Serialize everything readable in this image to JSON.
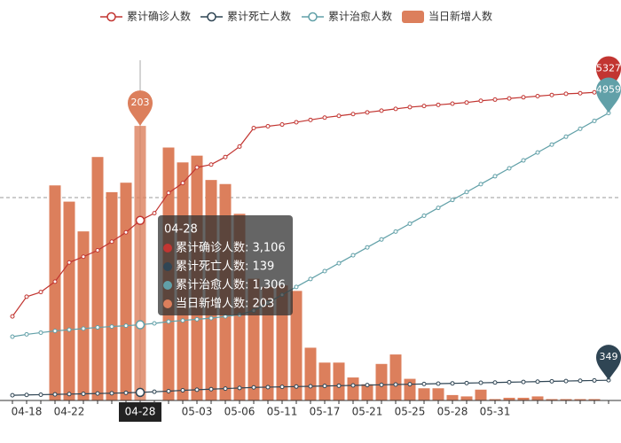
{
  "chart_data": {
    "type": "line",
    "categories": [
      null,
      "04-18",
      null,
      null,
      "04-22",
      null,
      null,
      null,
      null,
      "04-28",
      null,
      null,
      null,
      "05-03",
      null,
      null,
      "05-06",
      null,
      null,
      "05-11",
      null,
      null,
      "05-17",
      null,
      null,
      "05-21",
      null,
      null,
      "05-25",
      null,
      null,
      "05-28",
      null,
      null,
      "05-31",
      null,
      null,
      null,
      null,
      null,
      null,
      null,
      null
    ],
    "ylim": [
      0,
      7000
    ],
    "y2lim": [
      0,
      300
    ],
    "series": [
      {
        "name": "累计确诊人数",
        "type": "line",
        "color": "#c23531",
        "values": [
          1450,
          1790,
          1870,
          2050,
          2380,
          2480,
          2590,
          2740,
          2900,
          3106,
          3230,
          3580,
          3750,
          4020,
          4070,
          4200,
          4380,
          4700,
          4730,
          4760,
          4800,
          4840,
          4880,
          4910,
          4940,
          4970,
          5000,
          5030,
          5060,
          5080,
          5100,
          5120,
          5140,
          5170,
          5190,
          5210,
          5230,
          5250,
          5270,
          5290,
          5300,
          5315,
          5327
        ]
      },
      {
        "name": "累计死亡人数",
        "type": "line",
        "color": "#2f4554",
        "values": [
          90,
          95,
          100,
          105,
          110,
          115,
          120,
          125,
          132,
          139,
          150,
          160,
          175,
          185,
          195,
          205,
          215,
          225,
          230,
          235,
          240,
          245,
          250,
          255,
          260,
          265,
          270,
          275,
          280,
          285,
          290,
          295,
          300,
          305,
          310,
          315,
          320,
          325,
          330,
          335,
          340,
          345,
          349
        ]
      },
      {
        "name": "累计治愈人数",
        "type": "line",
        "color": "#61a0a8",
        "values": [
          1100,
          1140,
          1170,
          1200,
          1220,
          1240,
          1260,
          1275,
          1290,
          1306,
          1330,
          1360,
          1380,
          1400,
          1420,
          1450,
          1480,
          1550,
          1686,
          1823,
          1959,
          2095,
          2232,
          2368,
          2504,
          2641,
          2777,
          2914,
          3050,
          3186,
          3323,
          3459,
          3595,
          3732,
          3868,
          4004,
          4141,
          4277,
          4414,
          4550,
          4686,
          4823,
          4959
        ]
      },
      {
        "name": "当日新增人数",
        "type": "bar",
        "axis": "y2",
        "color": "#dc7f5c",
        "values": [
          null,
          null,
          null,
          159,
          147,
          125,
          180,
          154,
          161,
          203,
          null,
          187,
          176,
          181,
          163,
          160,
          138,
          90,
          84,
          85,
          81,
          39,
          28,
          28,
          17,
          12,
          27,
          34,
          16,
          9,
          9,
          4,
          3,
          8,
          1,
          2,
          2,
          3,
          1,
          1,
          1,
          1,
          null
        ]
      }
    ],
    "tooltip": {
      "title": "04-28",
      "rows": [
        "累计确诊人数: 3,106",
        "累计死亡人数: 139",
        "累计治愈人数: 1,306",
        "当日新增人数: 203"
      ]
    }
  }
}
